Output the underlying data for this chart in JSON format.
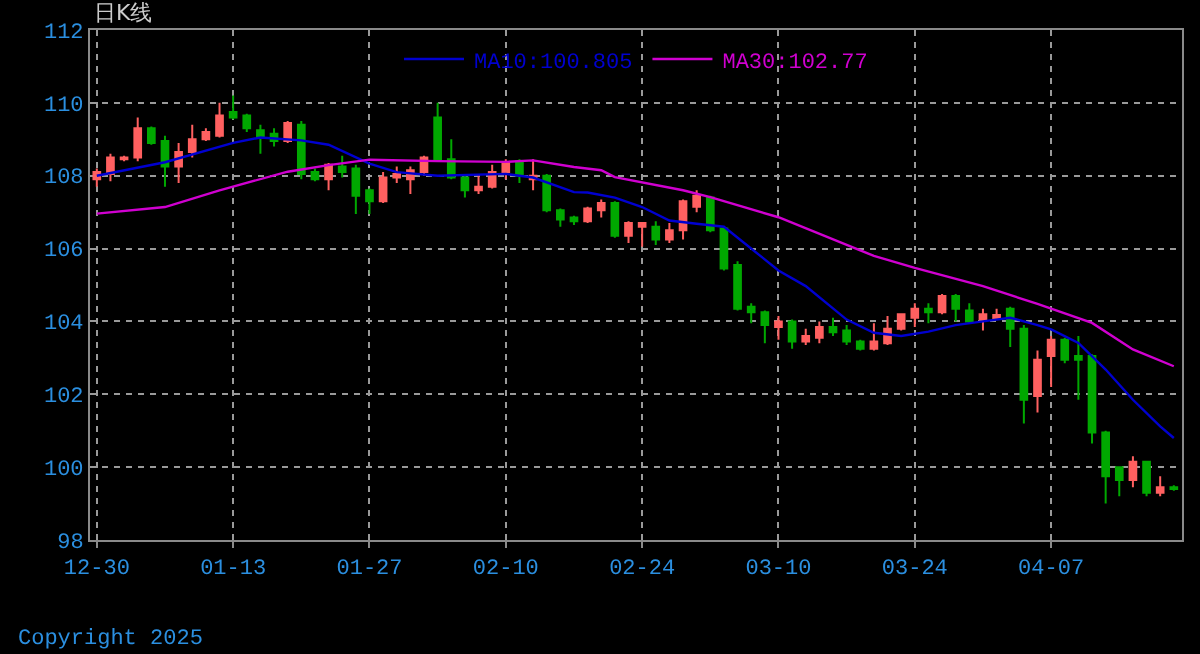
{
  "chart_data": {
    "type": "candlestick",
    "title": "日K线",
    "categories": [
      "12-30",
      null,
      null,
      null,
      null,
      null,
      null,
      null,
      null,
      null,
      "01-13",
      null,
      null,
      null,
      null,
      null,
      null,
      null,
      null,
      null,
      "01-27",
      null,
      null,
      null,
      null,
      null,
      null,
      null,
      null,
      null,
      "02-10",
      null,
      null,
      null,
      null,
      null,
      null,
      null,
      null,
      null,
      "02-24",
      null,
      null,
      null,
      null,
      null,
      null,
      null,
      null,
      null,
      "03-10",
      null,
      null,
      null,
      null,
      null,
      null,
      null,
      null,
      null,
      "03-24",
      null,
      null,
      null,
      null,
      null,
      null,
      null,
      null,
      null,
      "04-07",
      null,
      null,
      null,
      null,
      null,
      null,
      null,
      null,
      null
    ],
    "ohlc": [
      [
        107.9,
        108.2,
        107.7,
        108.1
      ],
      [
        108.05,
        108.6,
        107.85,
        108.5
      ],
      [
        108.45,
        108.55,
        108.4,
        108.5
      ],
      [
        108.5,
        109.6,
        108.4,
        109.3
      ],
      [
        109.3,
        109.35,
        108.85,
        108.9
      ],
      [
        108.95,
        109.1,
        107.7,
        108.25
      ],
      [
        108.25,
        108.9,
        107.8,
        108.65
      ],
      [
        108.65,
        109.4,
        108.5,
        109.0
      ],
      [
        109.0,
        109.3,
        108.95,
        109.2
      ],
      [
        109.1,
        110.0,
        109.05,
        109.65
      ],
      [
        109.75,
        110.2,
        109.55,
        109.6
      ],
      [
        109.65,
        109.7,
        109.2,
        109.3
      ],
      [
        109.25,
        109.4,
        108.6,
        109.05
      ],
      [
        109.15,
        109.3,
        108.8,
        108.95
      ],
      [
        108.95,
        109.5,
        108.9,
        109.45
      ],
      [
        109.4,
        109.5,
        107.9,
        108.05
      ],
      [
        108.1,
        108.2,
        107.85,
        107.9
      ],
      [
        107.9,
        108.35,
        107.6,
        108.3
      ],
      [
        108.25,
        108.55,
        107.95,
        108.1
      ],
      [
        108.2,
        108.3,
        106.95,
        107.45
      ],
      [
        107.6,
        107.65,
        106.95,
        107.3
      ],
      [
        107.3,
        108.1,
        107.25,
        107.95
      ],
      [
        107.95,
        108.25,
        107.8,
        108.05
      ],
      [
        107.9,
        108.25,
        107.5,
        108.15
      ],
      [
        108.1,
        108.55,
        108.0,
        108.5
      ],
      [
        109.6,
        110.0,
        108.4,
        108.45
      ],
      [
        108.45,
        109.0,
        107.9,
        107.95
      ],
      [
        107.95,
        108.0,
        107.4,
        107.6
      ],
      [
        107.6,
        108.05,
        107.5,
        107.7
      ],
      [
        107.7,
        108.3,
        107.65,
        108.1
      ],
      [
        108.1,
        108.45,
        107.9,
        108.35
      ],
      [
        108.4,
        108.45,
        107.8,
        108.0
      ],
      [
        107.9,
        108.45,
        107.6,
        108.0
      ],
      [
        108.0,
        108.05,
        107.0,
        107.05
      ],
      [
        107.05,
        107.1,
        106.6,
        106.8
      ],
      [
        106.85,
        106.9,
        106.65,
        106.75
      ],
      [
        106.75,
        107.15,
        106.7,
        107.1
      ],
      [
        107.05,
        107.35,
        106.85,
        107.25
      ],
      [
        107.25,
        107.3,
        106.3,
        106.35
      ],
      [
        106.35,
        106.75,
        106.15,
        106.7
      ],
      [
        106.6,
        106.7,
        106.05,
        106.7
      ],
      [
        106.6,
        106.75,
        106.1,
        106.25
      ],
      [
        106.25,
        106.7,
        106.15,
        106.5
      ],
      [
        106.5,
        107.35,
        106.25,
        107.3
      ],
      [
        107.15,
        107.6,
        107.0,
        107.45
      ],
      [
        107.4,
        107.45,
        106.45,
        106.5
      ],
      [
        106.55,
        106.6,
        105.4,
        105.45
      ],
      [
        105.55,
        105.65,
        104.3,
        104.35
      ],
      [
        104.4,
        104.5,
        103.95,
        104.25
      ],
      [
        104.25,
        104.3,
        103.4,
        103.9
      ],
      [
        103.85,
        104.15,
        103.5,
        104.0
      ],
      [
        104.0,
        104.05,
        103.25,
        103.45
      ],
      [
        103.45,
        103.8,
        103.35,
        103.6
      ],
      [
        103.55,
        104.0,
        103.4,
        103.85
      ],
      [
        103.85,
        104.1,
        103.6,
        103.7
      ],
      [
        103.75,
        103.9,
        103.35,
        103.45
      ],
      [
        103.45,
        103.5,
        103.2,
        103.25
      ],
      [
        103.25,
        103.95,
        103.2,
        103.45
      ],
      [
        103.4,
        104.15,
        103.35,
        103.8
      ],
      [
        103.8,
        104.2,
        103.75,
        104.2
      ],
      [
        104.1,
        104.5,
        103.85,
        104.35
      ],
      [
        104.35,
        104.5,
        103.95,
        104.25
      ],
      [
        104.25,
        104.75,
        104.2,
        104.7
      ],
      [
        104.7,
        104.75,
        104.0,
        104.35
      ],
      [
        104.3,
        104.5,
        103.95,
        104.0
      ],
      [
        104.05,
        104.35,
        103.75,
        104.2
      ],
      [
        104.08,
        104.35,
        104.05,
        104.18
      ],
      [
        104.35,
        104.4,
        103.3,
        103.8
      ],
      [
        103.8,
        103.9,
        101.2,
        101.85
      ],
      [
        101.95,
        103.2,
        101.5,
        102.95
      ],
      [
        103.05,
        103.6,
        102.2,
        103.5
      ],
      [
        103.5,
        103.55,
        102.85,
        102.95
      ],
      [
        103.05,
        103.6,
        101.85,
        102.95
      ],
      [
        103.05,
        103.1,
        100.65,
        100.95
      ],
      [
        100.95,
        101.0,
        99.0,
        99.75
      ],
      [
        100.0,
        100.0,
        99.2,
        99.65
      ],
      [
        99.65,
        100.3,
        99.45,
        100.15
      ],
      [
        100.15,
        100.15,
        99.2,
        99.3
      ],
      [
        99.3,
        99.75,
        99.2,
        99.45
      ],
      [
        99.45,
        99.5,
        99.35,
        99.4
      ]
    ],
    "colors": [
      "#ff6060",
      "#ff6060",
      "#ff6060",
      "#ff6060",
      "#00a800",
      "#00a800",
      "#ff6060",
      "#ff6060",
      "#ff6060",
      "#ff6060",
      "#00a800",
      "#00a800",
      "#00a800",
      "#00a800",
      "#ff6060",
      "#00a800",
      "#00a800",
      "#ff6060",
      "#00a800",
      "#00a800",
      "#00a800",
      "#ff6060",
      "#ff6060",
      "#ff6060",
      "#ff6060",
      "#00a800",
      "#00a800",
      "#00a800",
      "#ff6060",
      "#ff6060",
      "#ff6060",
      "#00a800",
      "#ff6060",
      "#00a800",
      "#00a800",
      "#00a800",
      "#ff6060",
      "#ff6060",
      "#00a800",
      "#ff6060",
      "#ff6060",
      "#00a800",
      "#ff6060",
      "#ff6060",
      "#ff6060",
      "#00a800",
      "#00a800",
      "#00a800",
      "#00a800",
      "#00a800",
      "#ff6060",
      "#00a800",
      "#ff6060",
      "#ff6060",
      "#00a800",
      "#00a800",
      "#00a800",
      "#ff6060",
      "#ff6060",
      "#ff6060",
      "#ff6060",
      "#00a800",
      "#ff6060",
      "#00a800",
      "#00a800",
      "#ff6060",
      "#ff6060",
      "#00a800",
      "#00a800",
      "#ff6060",
      "#ff6060",
      "#00a800",
      "#00a800",
      "#00a800",
      "#00a800",
      "#00a800",
      "#ff6060",
      "#00a800",
      "#ff6060",
      "#00a800"
    ],
    "series": [
      {
        "name": "MA10:100.805",
        "type": "line",
        "color": "#0000d0",
        "values": [
          108.0,
          null,
          null,
          null,
          null,
          108.37,
          null,
          null,
          null,
          null,
          108.9,
          null,
          109.05,
          null,
          null,
          108.97,
          null,
          108.85,
          null,
          null,
          108.33,
          null,
          108.1,
          null,
          null,
          108.0,
          null,
          null,
          null,
          null,
          108.05,
          null,
          107.95,
          null,
          null,
          107.55,
          107.54,
          null,
          107.4,
          null,
          107.14,
          null,
          106.77,
          null,
          106.68,
          null,
          106.6,
          null,
          null,
          null,
          105.4,
          null,
          104.97,
          null,
          null,
          104.05,
          null,
          103.69,
          null,
          103.6,
          null,
          103.72,
          null,
          103.9,
          null,
          104.0,
          null,
          104.1,
          null,
          103.9,
          103.78,
          null,
          103.41,
          null,
          102.68,
          null,
          101.85,
          null,
          101.12,
          100.8
        ]
      },
      {
        "name": "MA30:102.77",
        "type": "line",
        "color": "#d000d0",
        "values": [
          106.96,
          null,
          null,
          null,
          null,
          107.14,
          null,
          null,
          null,
          107.6,
          null,
          null,
          null,
          null,
          108.11,
          null,
          null,
          108.29,
          null,
          null,
          108.44,
          null,
          null,
          null,
          null,
          108.4,
          null,
          null,
          null,
          null,
          108.38,
          null,
          108.42,
          null,
          null,
          108.24,
          null,
          108.15,
          107.96,
          null,
          null,
          null,
          null,
          107.6,
          null,
          107.41,
          null,
          null,
          null,
          null,
          106.86,
          null,
          null,
          null,
          null,
          null,
          105.95,
          105.8,
          null,
          null,
          105.47,
          null,
          null,
          null,
          null,
          104.97,
          null,
          null,
          null,
          104.48,
          null,
          null,
          null,
          103.96,
          null,
          null,
          103.23,
          null,
          null,
          102.77
        ]
      }
    ],
    "ylim": [
      98,
      112
    ],
    "yticks": [
      98,
      100,
      102,
      104,
      106,
      108,
      110,
      112
    ],
    "grid": true,
    "legend": "top",
    "annotations": [
      "Copyright 2025"
    ]
  }
}
